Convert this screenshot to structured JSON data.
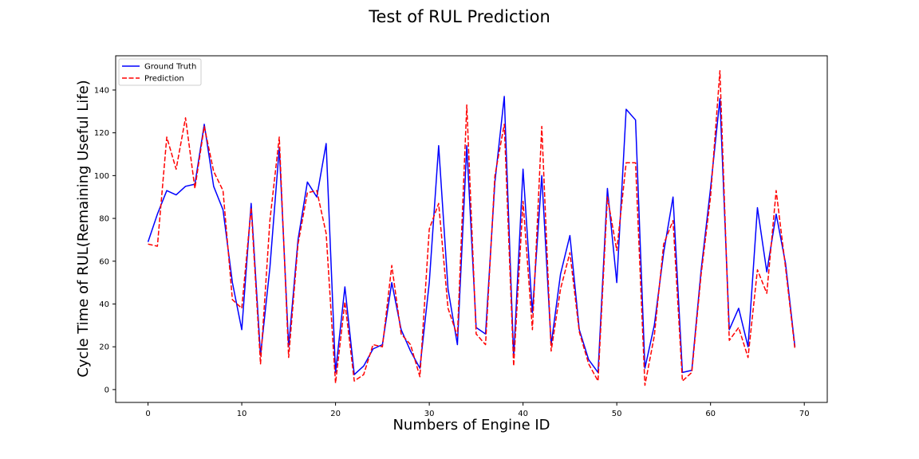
{
  "chart_data": {
    "type": "line",
    "title": "Test of RUL Prediction",
    "xlabel": "Numbers of Engine ID",
    "ylabel": "Cycle Time of RUL(Remaining Useful Life)",
    "xlim": [
      -3.45,
      72.45
    ],
    "ylim": [
      -6,
      156
    ],
    "xticks": [
      0,
      10,
      20,
      30,
      40,
      50,
      60,
      70
    ],
    "yticks": [
      0,
      20,
      40,
      60,
      80,
      100,
      120,
      140
    ],
    "grid": false,
    "legend_position": "top-left",
    "x": [
      0,
      1,
      2,
      3,
      4,
      5,
      6,
      7,
      8,
      9,
      10,
      11,
      12,
      13,
      14,
      15,
      16,
      17,
      18,
      19,
      20,
      21,
      22,
      23,
      24,
      25,
      26,
      27,
      28,
      29,
      30,
      31,
      32,
      33,
      34,
      35,
      36,
      37,
      38,
      39,
      40,
      41,
      42,
      43,
      44,
      45,
      46,
      47,
      48,
      49,
      50,
      51,
      52,
      53,
      54,
      55,
      56,
      57,
      58,
      59,
      60,
      61,
      62,
      63,
      64,
      65,
      66,
      67,
      68,
      69
    ],
    "series": [
      {
        "name": "Ground Truth",
        "color": "#0000ff",
        "style": "solid",
        "values": [
          69,
          82,
          93,
          91,
          95,
          96,
          124,
          95,
          84,
          50,
          28,
          87,
          16,
          57,
          113,
          20,
          70,
          97,
          90,
          115,
          8,
          48,
          7,
          11,
          19,
          21,
          50,
          28,
          18,
          10,
          50,
          114,
          47,
          21,
          114,
          29,
          26,
          97,
          137,
          15,
          103,
          36,
          100,
          21,
          54,
          72,
          28,
          14,
          8,
          94,
          50,
          131,
          126,
          10,
          30,
          64,
          90,
          8,
          9,
          56,
          94,
          136,
          28,
          38,
          20,
          85,
          55,
          82,
          59,
          20
        ]
      },
      {
        "name": "Prediction",
        "color": "#ff0000",
        "style": "dashed",
        "values": [
          68,
          67,
          118,
          103,
          127,
          94,
          123,
          102,
          93,
          42,
          38,
          85,
          12,
          79,
          118,
          15,
          68,
          92,
          93,
          73,
          3,
          41,
          4,
          7,
          21,
          20,
          58,
          26,
          21,
          6,
          75,
          87,
          38,
          25,
          133,
          26,
          21,
          100,
          124,
          11,
          88,
          28,
          123,
          18,
          47,
          64,
          27,
          12,
          4,
          90,
          65,
          106,
          106,
          2,
          25,
          68,
          79,
          4,
          8,
          54,
          90,
          149,
          23,
          29,
          15,
          56,
          45,
          93,
          57,
          19
        ]
      }
    ]
  }
}
